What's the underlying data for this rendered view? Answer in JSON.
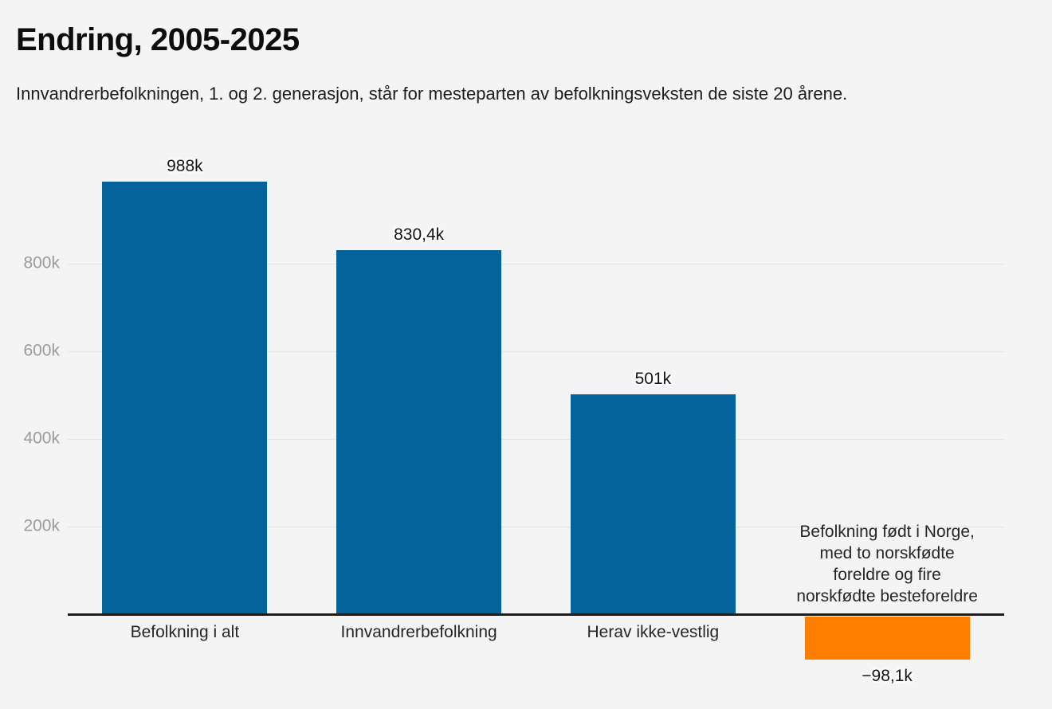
{
  "page": {
    "background_color": "#f4f4f4"
  },
  "chart_data": {
    "type": "bar",
    "title": "Endring, 2005-2025",
    "subtitle": "Innvandrerbefolkningen, 1. og 2. generasjon, står for mesteparten av befolkningsveksten de siste 20 årene.",
    "unit": "persons, thousands (k)",
    "categories": [
      "Befolkning i alt",
      "Innvandrerbefolkning",
      "Herav ikke-vestlig",
      "Befolkning født i Norge,\nmed to norskfødte\nforeldre og fire\nnorskfødte besteforeldre"
    ],
    "values": [
      988,
      830.4,
      501,
      -98.1
    ],
    "value_labels": [
      "988k",
      "830,4k",
      "501k",
      "−98,1k"
    ],
    "bar_colors": [
      "#05639b",
      "#05639b",
      "#05639b",
      "#ff7e00"
    ],
    "yticks": [
      200,
      400,
      600,
      800
    ],
    "ytick_labels": [
      "200k",
      "400k",
      "600k",
      "800k"
    ],
    "ylim": [
      -150,
      1050
    ],
    "xlabel": "",
    "ylabel": "",
    "grid": "horizontal gridlines every 200k, no vertical grid",
    "legend": "none",
    "colors": {
      "positive_bar": "#05639b",
      "negative_bar": "#ff7e00",
      "axis_line": "#1d1d1d",
      "gridline": "#e4e4e4",
      "tick_label": "#9b9b9b",
      "value_label": "#141414",
      "category_label": "#262626"
    }
  }
}
